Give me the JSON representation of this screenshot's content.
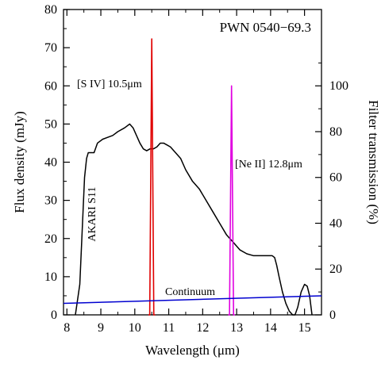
{
  "chart_data": {
    "type": "line",
    "title": "PWN 0540−69.3",
    "xlabel": "Wavelength (μm)",
    "ylabel": "Flux density (mJy)",
    "y2label": "Filter transmission (%)",
    "xlim": [
      7.9,
      15.5
    ],
    "ylim": [
      0,
      80
    ],
    "y2lim": [
      0,
      133.33
    ],
    "xticks": [
      8,
      9,
      10,
      11,
      12,
      13,
      14,
      15
    ],
    "yticks": [
      0,
      10,
      20,
      30,
      40,
      50,
      60,
      70,
      80
    ],
    "y2ticks": [
      0,
      20,
      40,
      60,
      80,
      100
    ],
    "annotations": {
      "akari": "AKARI S11",
      "s4": "[S IV] 10.5μm",
      "ne2": "[Ne II] 12.8μm",
      "continuum": "Continuum"
    },
    "series": [
      {
        "name": "AKARI S11",
        "color": "#000000",
        "axis": "left",
        "x": [
          8.25,
          8.38,
          8.45,
          8.52,
          8.58,
          8.63,
          8.7,
          8.8,
          8.9,
          9.05,
          9.2,
          9.35,
          9.5,
          9.7,
          9.85,
          9.95,
          10.05,
          10.15,
          10.25,
          10.35,
          10.45,
          10.55,
          10.65,
          10.75,
          10.85,
          10.95,
          11.05,
          11.2,
          11.35,
          11.5,
          11.7,
          11.9,
          12.1,
          12.3,
          12.5,
          12.7,
          12.9,
          13.1,
          13.3,
          13.5,
          13.7,
          13.9,
          14.05,
          14.12,
          14.18,
          14.25,
          14.35,
          14.45,
          14.55,
          14.65,
          14.72,
          14.8,
          14.9,
          15.0,
          15.08,
          15.15,
          15.22
        ],
        "y": [
          0,
          8,
          22,
          36,
          41,
          42.5,
          42.5,
          42.5,
          45,
          46,
          46.5,
          47,
          48,
          49,
          50,
          49,
          47,
          45,
          43.5,
          43,
          43.5,
          43.5,
          44,
          45,
          45,
          44.5,
          44,
          42.5,
          41,
          38,
          35,
          33,
          30,
          27,
          24,
          21,
          19,
          17,
          16,
          15.5,
          15.5,
          15.5,
          15.5,
          15,
          13,
          10,
          6,
          3,
          1,
          0,
          0,
          2,
          6,
          8,
          7.5,
          5,
          0
        ]
      },
      {
        "name": "[S IV] 10.5μm",
        "color": "#e00000",
        "axis": "right",
        "x": [
          10.4,
          10.44,
          10.47,
          10.5,
          10.53,
          10.56,
          10.6
        ],
        "y": [
          0,
          0,
          60,
          120.5,
          60,
          0,
          0
        ]
      },
      {
        "name": "[Ne II] 12.8μm",
        "color": "#e000e0",
        "axis": "right",
        "x": [
          12.75,
          12.79,
          12.82,
          12.85,
          12.88,
          12.91,
          12.95
        ],
        "y": [
          0,
          0,
          50,
          100,
          50,
          0,
          0
        ]
      },
      {
        "name": "Continuum",
        "color": "#0000d0",
        "axis": "left",
        "x": [
          7.9,
          15.5
        ],
        "y": [
          3,
          5
        ]
      }
    ]
  }
}
